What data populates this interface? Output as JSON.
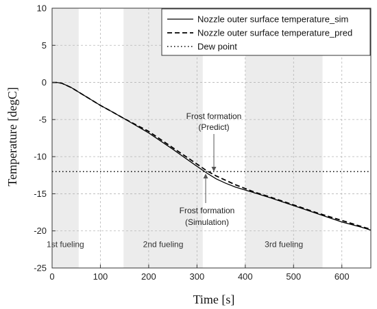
{
  "chart_data": {
    "type": "line",
    "xlabel": "Time [s]",
    "ylabel": "Temperature [degC]",
    "xlim": [
      0,
      660
    ],
    "ylim": [
      -25,
      10
    ],
    "xticks": [
      0,
      100,
      200,
      300,
      400,
      500,
      600
    ],
    "yticks": [
      10,
      5,
      0,
      -5,
      -10,
      -15,
      -20,
      -25
    ],
    "grid": true,
    "legend_position": "top-right",
    "series": [
      {
        "name": "Nozzle outer surface temperature_sim",
        "style": "solid",
        "color": "#000000",
        "x": [
          0,
          10,
          20,
          30,
          40,
          50,
          60,
          80,
          100,
          120,
          150,
          200,
          250,
          300,
          320,
          340,
          360,
          380,
          400,
          420,
          450,
          500,
          550,
          600,
          640,
          660
        ],
        "y": [
          0,
          0,
          -0.1,
          -0.4,
          -0.7,
          -1.1,
          -1.5,
          -2.3,
          -3.1,
          -3.8,
          -4.9,
          -6.8,
          -9.0,
          -11.3,
          -12.2,
          -13.0,
          -13.6,
          -14.1,
          -14.5,
          -14.9,
          -15.5,
          -16.6,
          -17.7,
          -18.8,
          -19.5,
          -19.9
        ]
      },
      {
        "name": "Nozzle outer surface temperature_pred",
        "style": "dashed",
        "color": "#000000",
        "x": [
          0,
          10,
          20,
          30,
          40,
          50,
          60,
          80,
          100,
          120,
          150,
          200,
          250,
          300,
          320,
          340,
          360,
          380,
          400,
          420,
          450,
          500,
          550,
          600,
          640,
          660
        ],
        "y": [
          0,
          0,
          -0.1,
          -0.4,
          -0.7,
          -1.1,
          -1.5,
          -2.3,
          -3.1,
          -3.8,
          -4.9,
          -6.6,
          -8.8,
          -11.0,
          -11.9,
          -12.6,
          -13.2,
          -13.8,
          -14.3,
          -14.8,
          -15.4,
          -16.5,
          -17.6,
          -18.6,
          -19.4,
          -19.8
        ]
      },
      {
        "name": "Dew point",
        "style": "dotted",
        "color": "#000000",
        "x": [
          0,
          660
        ],
        "y": [
          -12,
          -12
        ]
      }
    ],
    "shaded_regions": [
      {
        "label": "1st fueling",
        "x_start": 0,
        "x_end": 55
      },
      {
        "label": "2nd fueling",
        "x_start": 148,
        "x_end": 312
      },
      {
        "label": "3rd fueling",
        "x_start": 400,
        "x_end": 560
      }
    ],
    "annotations": [
      {
        "line1": "Frost formation",
        "line2": "(Predict)",
        "arrow_x": 335,
        "arrow_y": -12.1
      },
      {
        "line1": "Frost formation",
        "line2": "(Simulation)",
        "arrow_x": 318,
        "arrow_y": -12.2
      }
    ]
  }
}
